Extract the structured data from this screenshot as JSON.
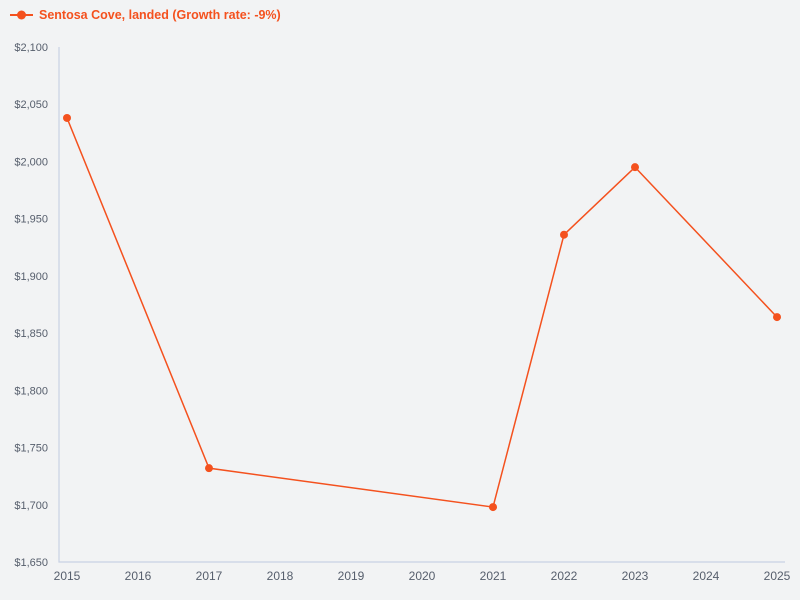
{
  "chart_data": {
    "type": "line",
    "title": "Sentosa Cove, landed (Growth rate: -9%)",
    "series": [
      {
        "name": "Sentosa Cove, landed",
        "growth_rate_label": "Growth rate: -9%",
        "x": [
          2015,
          2017,
          2021,
          2022,
          2023,
          2025
        ],
        "values": [
          2038,
          1732,
          1698,
          1936,
          1995,
          1864
        ]
      }
    ],
    "x_ticks": [
      2015,
      2016,
      2017,
      2018,
      2019,
      2020,
      2021,
      2022,
      2023,
      2024,
      2025
    ],
    "y_ticks": [
      1650,
      1700,
      1750,
      1800,
      1850,
      1900,
      1950,
      2000,
      2050,
      2100
    ],
    "y_tick_labels": [
      "$1,650",
      "$1,700",
      "$1,750",
      "$1,800",
      "$1,850",
      "$1,900",
      "$1,950",
      "$2,000",
      "$2,050",
      "$2,100"
    ],
    "xlim": [
      2015,
      2025
    ],
    "ylim": [
      1650,
      2100
    ],
    "grid": false,
    "legend_position": "top-left",
    "marker": "circle",
    "colors": {
      "series": "#f4511e",
      "axis": "#c9d2e4",
      "tick_label": "#565e6c",
      "background": "#f2f3f4"
    }
  }
}
